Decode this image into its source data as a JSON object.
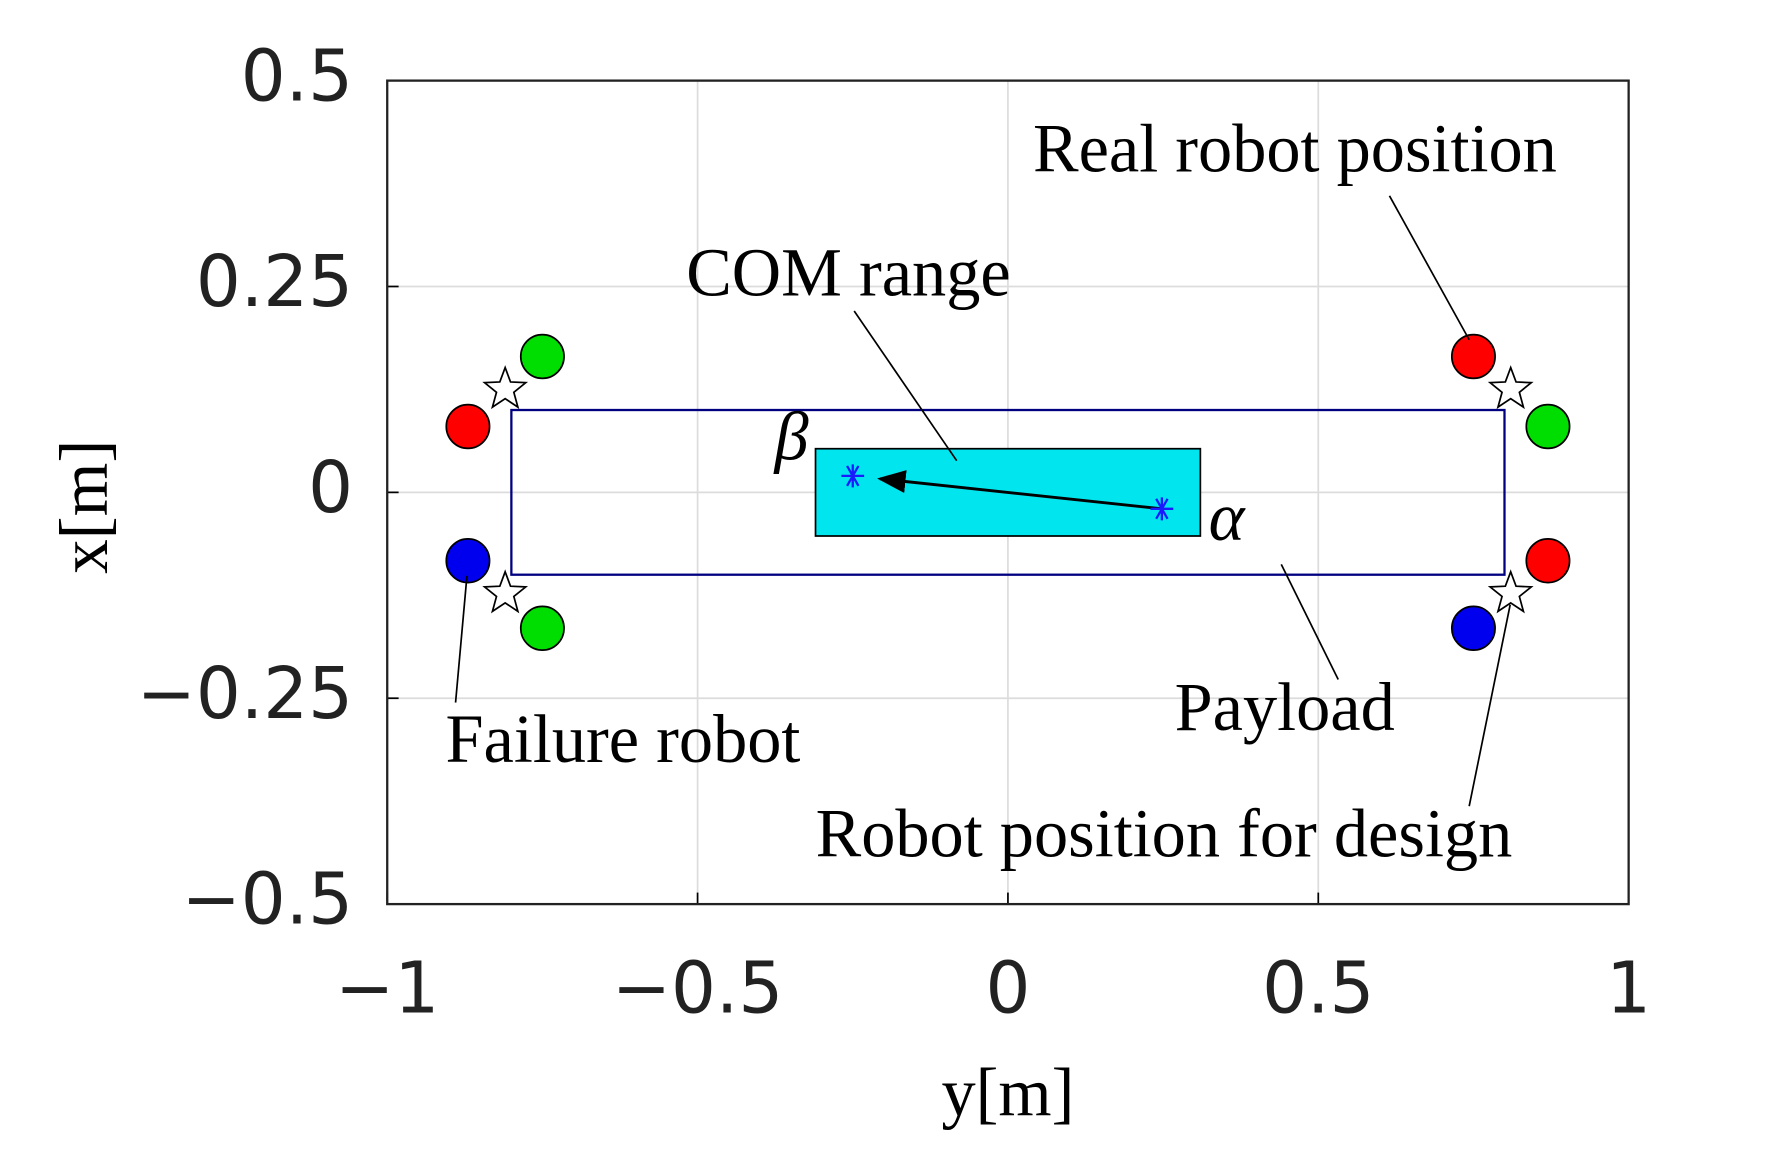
{
  "chart_data": {
    "type": "scatter",
    "xlabel": "y[m]",
    "ylabel": "x[m]",
    "xlim": [
      -1,
      1
    ],
    "xticks": [
      {
        "value": -1,
        "label": "−1"
      },
      {
        "value": -0.5,
        "label": "−0.5"
      },
      0,
      0.5,
      1
    ],
    "ylim": [
      -0.5,
      0.5
    ],
    "yticks": [
      {
        "value": -0.5,
        "label": "−0.5"
      },
      {
        "value": -0.25,
        "label": "−0.25"
      },
      0,
      0.25,
      0.5
    ],
    "grid": true,
    "payload": {
      "x": [
        -0.8,
        0.8
      ],
      "values": [
        -0.1,
        0.1
      ],
      "color": "#000080"
    },
    "com_range": {
      "x": [
        -0.31,
        0.31
      ],
      "values": [
        -0.053,
        0.053
      ],
      "color": "#00e5ee"
    },
    "alpha": {
      "x": 0.248,
      "value": -0.02
    },
    "beta": {
      "x": -0.25,
      "value": 0.02
    },
    "series": [
      {
        "color": "#ff0000",
        "marker": "circle",
        "x": [
          -0.87,
          0.75,
          0.87
        ],
        "values": [
          0.08,
          0.165,
          -0.083
        ]
      },
      {
        "color": "#00dd00",
        "marker": "circle",
        "x": [
          -0.75,
          -0.75,
          0.87
        ],
        "values": [
          0.165,
          -0.165,
          0.08
        ]
      },
      {
        "color": "#0000ee",
        "marker": "circle",
        "x": [
          -0.87,
          0.75
        ],
        "values": [
          -0.083,
          -0.165
        ]
      },
      {
        "color": "#ffffff",
        "marker": "star",
        "x": [
          -0.81,
          -0.81,
          0.81,
          0.81
        ],
        "values": [
          0.125,
          -0.123,
          0.125,
          -0.123
        ]
      }
    ],
    "annotations": [
      "Real robot position",
      "COM range",
      "β",
      "α",
      "Payload",
      "Failure robot",
      "Robot position for design"
    ]
  }
}
